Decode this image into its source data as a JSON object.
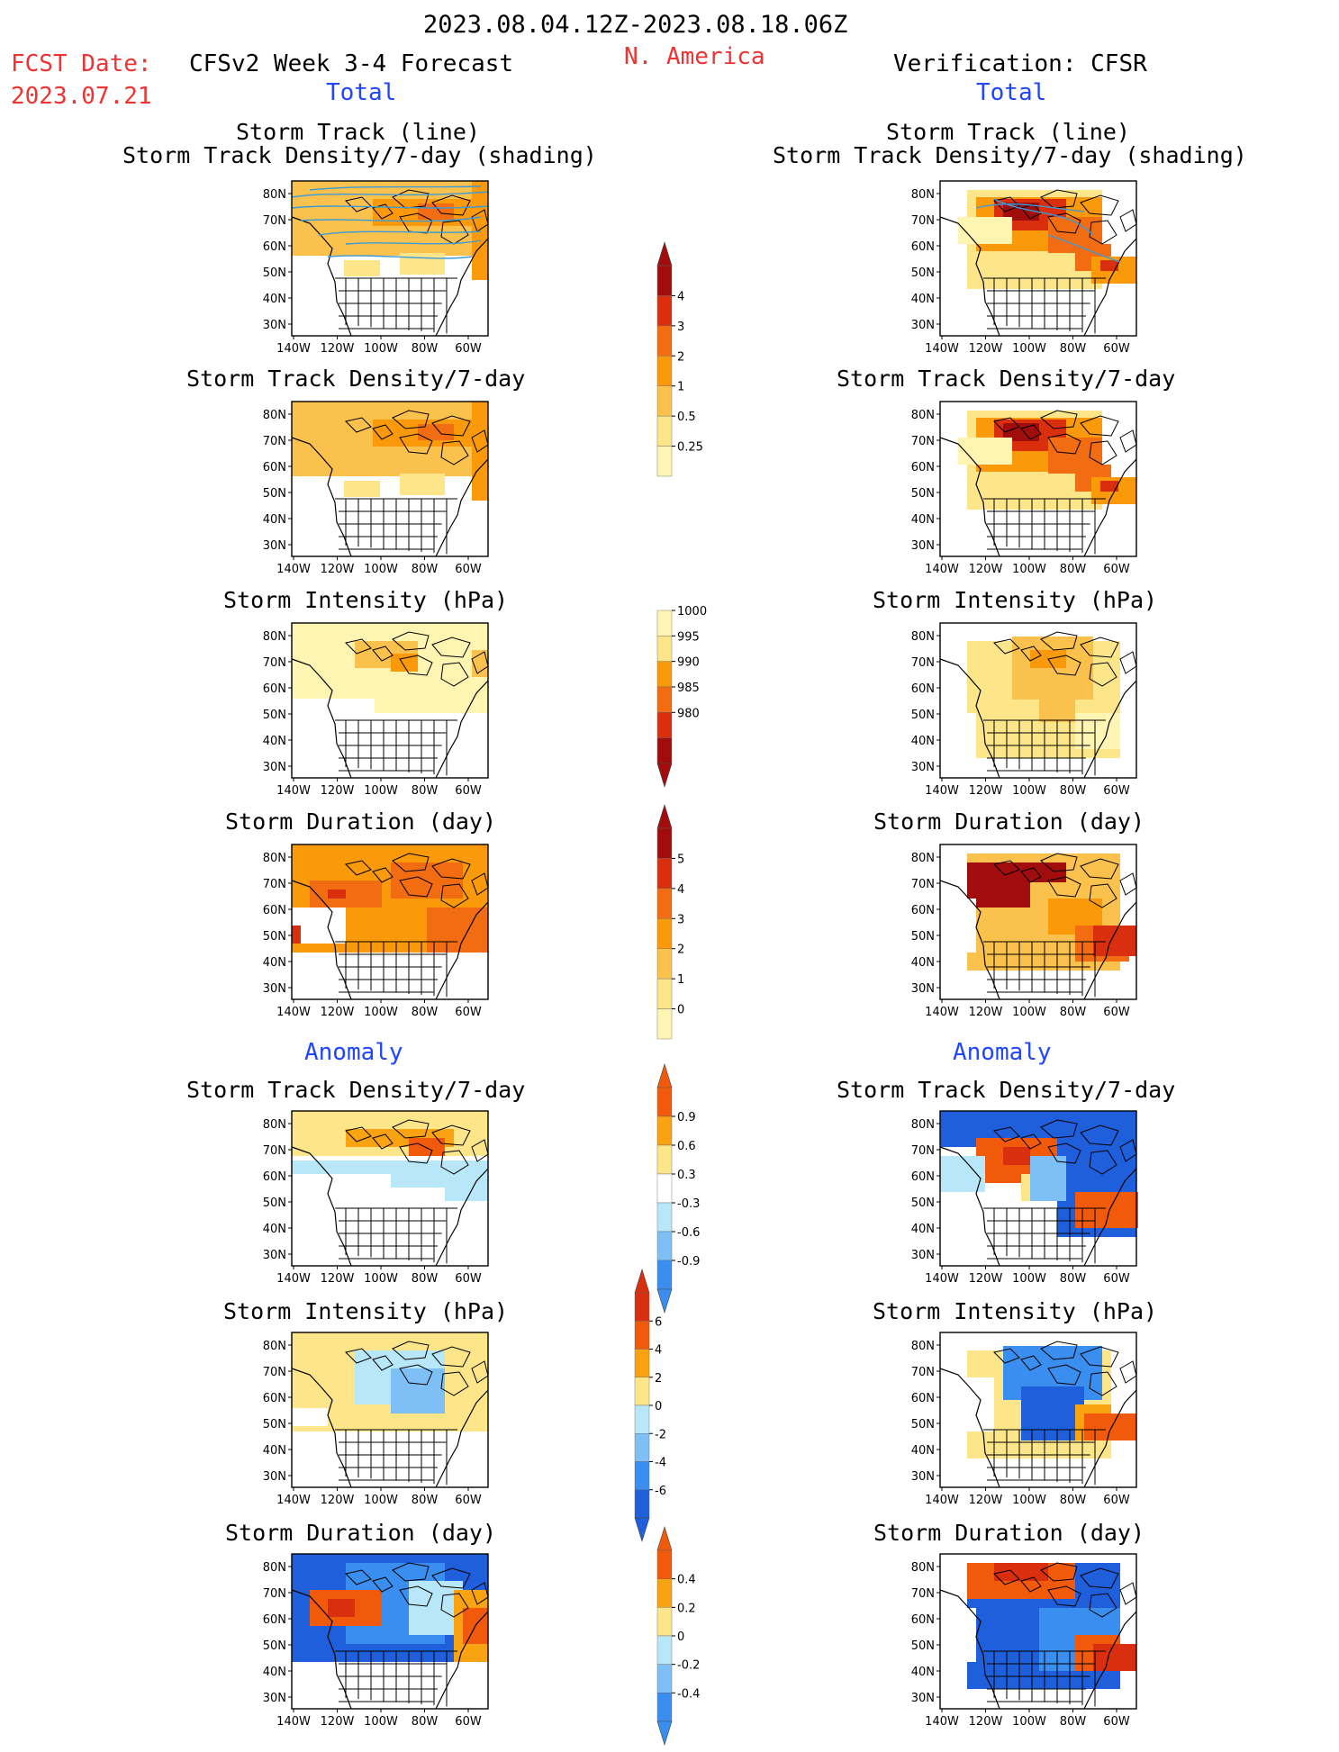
{
  "header": {
    "period": "2023.08.04.12Z-2023.08.18.06Z",
    "fcst_label": "FCST Date:",
    "fcst_date": "2023.07.21",
    "model_title": "CFSv2 Week 3-4 Forecast",
    "region": "N. America",
    "verification": "Verification: CFSR",
    "total_left": "Total",
    "total_right": "Total",
    "anomaly_left": "Anomaly",
    "anomaly_right": "Anomaly"
  },
  "axes": {
    "lat_labels": [
      "80N",
      "70N",
      "60N",
      "50N",
      "40N",
      "30N"
    ],
    "lon_labels": [
      "140W",
      "120W",
      "100W",
      "80W",
      "60W"
    ]
  },
  "panels": {
    "r1_title_a": "Storm Track (line)",
    "r1_title_b": "Storm Track Density/7-day (shading)",
    "density": "Storm Track Density/7-day",
    "intensity": "Storm Intensity (hPa)",
    "duration": "Storm Duration (day)"
  },
  "colorbars": {
    "density_total": [
      "4",
      "3",
      "2",
      "1",
      "0.5",
      "0.25"
    ],
    "intensity_total": [
      "1000",
      "995",
      "990",
      "985",
      "980"
    ],
    "duration_total": [
      "5",
      "4",
      "3",
      "2",
      "1",
      "0"
    ],
    "density_anom": [
      "0.9",
      "0.6",
      "0.3",
      "-0.3",
      "-0.6",
      "-0.9"
    ],
    "intensity_anom": [
      "6",
      "4",
      "2",
      "0",
      "-2",
      "-4",
      "-6"
    ],
    "duration_anom": [
      "0.4",
      "0.2",
      "0",
      "-0.2",
      "-0.4"
    ]
  },
  "colors": {
    "warm": [
      "#fff5b3",
      "#fde68a",
      "#fbc14d",
      "#fa9a0a",
      "#f26c12",
      "#d92f0e",
      "#a10d0d"
    ],
    "anom": [
      "#1f5fdc",
      "#3a8ef0",
      "#7ec0f5",
      "#b8e7f9",
      "#ffffff",
      "#fde68a",
      "#f9a312",
      "#f25a0b"
    ],
    "track_line": "#3b9bd8"
  }
}
